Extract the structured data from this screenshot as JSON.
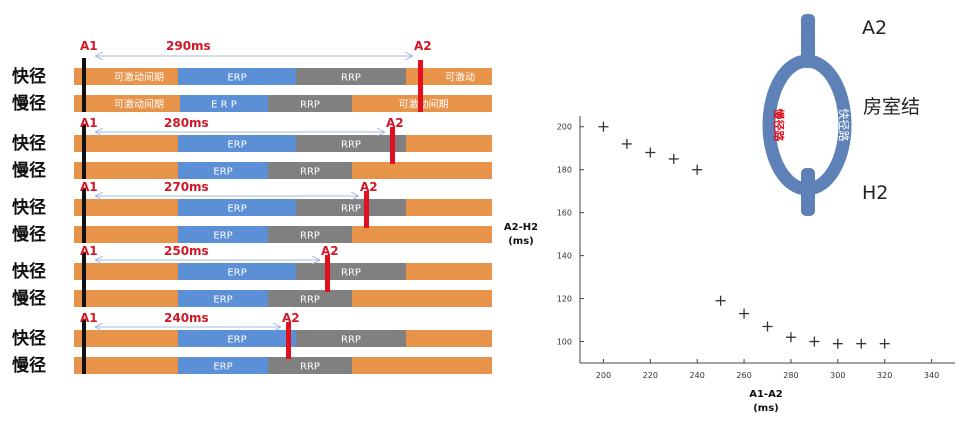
{
  "colors": {
    "refractory_orange": "#e8934a",
    "erp_blue": "#5b8fd6",
    "rrp_gray": "#808080",
    "a2_red": "#e01020",
    "a1_black": "#111111",
    "label_red": "#d01828",
    "arrow": "#a9b8e0",
    "av_node_blue": "#5e82b8",
    "slow_label": "#e01020",
    "fast_label": "#ffffff"
  },
  "pathway_labels": {
    "fast": "快径",
    "slow": "慢径"
  },
  "bar_labels": {
    "excitable": "可激动间期",
    "erp": "ERP",
    "erp_spaced": "E R P",
    "rrp": "RRP",
    "excitable_short": "可激动"
  },
  "a1_label": "A1",
  "a2_label": "A2",
  "panels": [
    {
      "interval": "290ms"
    },
    {
      "interval": "280ms"
    },
    {
      "interval": "270ms"
    },
    {
      "interval": "250ms"
    },
    {
      "interval": "240ms"
    }
  ],
  "av_diagram": {
    "top": "A2",
    "bottom": "H2",
    "name": "房室结",
    "fast_path": "快径路",
    "slow_path": "慢径路"
  },
  "chart_data": {
    "type": "scatter",
    "xlabel": "A1-A2",
    "xunit": "(ms)",
    "ylabel": "A2-H2",
    "yunit": "(ms)",
    "xlim": [
      190,
      350
    ],
    "ylim": [
      90,
      205
    ],
    "xticks": [
      200,
      220,
      240,
      260,
      280,
      300,
      320,
      340
    ],
    "yticks": [
      100,
      120,
      140,
      160,
      180,
      200
    ],
    "points": [
      {
        "x": 200,
        "y": 200
      },
      {
        "x": 210,
        "y": 192
      },
      {
        "x": 220,
        "y": 188
      },
      {
        "x": 230,
        "y": 185
      },
      {
        "x": 240,
        "y": 180
      },
      {
        "x": 250,
        "y": 119
      },
      {
        "x": 260,
        "y": 113
      },
      {
        "x": 270,
        "y": 107
      },
      {
        "x": 280,
        "y": 102
      },
      {
        "x": 290,
        "y": 100
      },
      {
        "x": 300,
        "y": 99
      },
      {
        "x": 310,
        "y": 99
      },
      {
        "x": 320,
        "y": 99
      }
    ]
  }
}
